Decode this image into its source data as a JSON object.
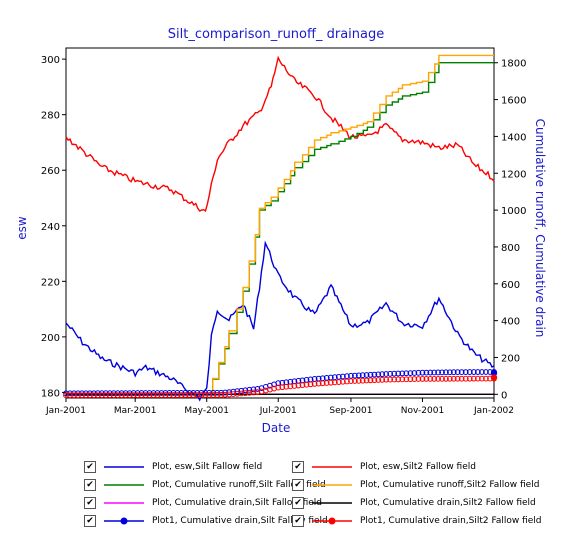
{
  "chart_data": {
    "type": "line",
    "title": "Silt_comparison_runoff_ drainage",
    "xlabel": "Date",
    "ylabel_left": "esw",
    "ylabel_right": "Cumulative runoff, Cumulative drain",
    "x_tick_labels": [
      "Jan-2001",
      "Mar-2001",
      "May-2001",
      "Jul-2001",
      "Sep-2001",
      "Nov-2001",
      "Jan-2002"
    ],
    "x_range": [
      "2001-01-01",
      "2002-01-01"
    ],
    "y_left_ticks": [
      "180",
      "200",
      "220",
      "240",
      "260",
      "280",
      "300"
    ],
    "y_left_range": [
      178,
      304
    ],
    "y_right_ticks": [
      "0",
      "200",
      "400",
      "600",
      "800",
      "1000",
      "1200",
      "1400",
      "1600",
      "1800"
    ],
    "y_right_range": [
      -20,
      1880
    ],
    "grid": false,
    "legend_placement": "bottom",
    "series": [
      {
        "name": "Plot, esw,Silt Fallow field",
        "axis": "left",
        "color": "#0000dd",
        "x": [
          "2001-01-01",
          "2001-01-15",
          "2001-02-01",
          "2001-03-01",
          "2001-03-10",
          "2001-04-01",
          "2001-04-10",
          "2001-04-25",
          "2001-05-01",
          "2001-05-05",
          "2001-05-10",
          "2001-05-20",
          "2001-06-01",
          "2001-06-10",
          "2001-06-15",
          "2001-06-20",
          "2001-07-01",
          "2001-07-15",
          "2001-08-01",
          "2001-08-15",
          "2001-09-01",
          "2001-09-15",
          "2001-10-01",
          "2001-10-15",
          "2001-11-01",
          "2001-11-15",
          "2001-12-01",
          "2001-12-15",
          "2002-01-01"
        ],
        "y": [
          205,
          198,
          192,
          187,
          189,
          185,
          182,
          178,
          181,
          200,
          210,
          206,
          212,
          203,
          218,
          234,
          222,
          214,
          208,
          218,
          204,
          205,
          212,
          205,
          204,
          214,
          201,
          194,
          189
        ]
      },
      {
        "name": "Plot, esw,Silt2 Fallow field",
        "axis": "left",
        "color": "#ff0000",
        "x": [
          "2001-01-01",
          "2001-02-01",
          "2001-03-01",
          "2001-04-01",
          "2001-04-15",
          "2001-04-30",
          "2001-05-10",
          "2001-05-20",
          "2001-06-01",
          "2001-06-15",
          "2001-06-25",
          "2001-07-01",
          "2001-07-15",
          "2001-08-01",
          "2001-08-15",
          "2001-09-01",
          "2001-09-15",
          "2001-10-01",
          "2001-10-15",
          "2001-11-01",
          "2001-11-15",
          "2001-12-01",
          "2001-12-15",
          "2002-01-01"
        ],
        "y": [
          272,
          261,
          256,
          253,
          249,
          245,
          264,
          270,
          276,
          281,
          290,
          300,
          292,
          287,
          279,
          272,
          272,
          276,
          271,
          270,
          268,
          269,
          262,
          257
        ]
      },
      {
        "name": "Plot, Cumulative runoff,Silt Fallow field",
        "axis": "right",
        "color": "#008000",
        "x": [
          "2001-01-01",
          "2001-05-01",
          "2001-05-20",
          "2001-06-01",
          "2001-06-15",
          "2001-06-25",
          "2001-07-01",
          "2001-07-15",
          "2001-08-01",
          "2001-08-15",
          "2001-09-01",
          "2001-09-15",
          "2001-10-01",
          "2001-10-15",
          "2001-11-01",
          "2001-11-15",
          "2002-01-01"
        ],
        "y": [
          0,
          0,
          330,
          560,
          1000,
          1050,
          1100,
          1230,
          1330,
          1360,
          1400,
          1450,
          1570,
          1620,
          1640,
          1800,
          1800
        ]
      },
      {
        "name": "Plot, Cumulative runoff,Silt2 Fallow field",
        "axis": "right",
        "color": "#ffa500",
        "x": [
          "2001-01-01",
          "2001-05-01",
          "2001-05-20",
          "2001-06-01",
          "2001-06-15",
          "2001-06-25",
          "2001-07-01",
          "2001-07-15",
          "2001-08-01",
          "2001-08-15",
          "2001-09-01",
          "2001-09-15",
          "2001-10-01",
          "2001-10-15",
          "2001-11-01",
          "2001-11-15",
          "2002-01-01"
        ],
        "y": [
          0,
          0,
          345,
          580,
          1010,
          1070,
          1120,
          1260,
          1380,
          1420,
          1450,
          1480,
          1620,
          1680,
          1700,
          1840,
          1840
        ]
      },
      {
        "name": "Plot, Cumulative drain,Silt Fallow field",
        "axis": "right",
        "color": "#ff00ff",
        "x": [
          "2001-01-01",
          "2002-01-01"
        ],
        "y": [
          0,
          0
        ]
      },
      {
        "name": "Plot, Cumulative drain,Silt2 Fallow field",
        "axis": "right",
        "color": "#000000",
        "x": [
          "2001-01-01",
          "2002-01-01"
        ],
        "y": [
          0,
          0
        ]
      },
      {
        "name": "Plot1, Cumulative drain,Silt Fallow field",
        "axis": "right",
        "color": "#0000dd",
        "marker": "circle",
        "x": [
          "2001-01-01",
          "2001-05-15",
          "2001-06-15",
          "2001-07-01",
          "2001-08-01",
          "2001-09-01",
          "2001-10-01",
          "2001-11-01",
          "2001-12-01",
          "2002-01-01"
        ],
        "y": [
          0,
          3,
          25,
          55,
          78,
          95,
          105,
          112,
          115,
          116
        ]
      },
      {
        "name": "Plot1, Cumulative drain,Silt2 Fallow field",
        "axis": "right",
        "color": "#ff0000",
        "marker": "circle",
        "x": [
          "2001-01-01",
          "2001-05-15",
          "2001-06-15",
          "2001-07-01",
          "2001-08-01",
          "2001-09-01",
          "2001-10-01",
          "2001-11-01",
          "2001-12-01",
          "2002-01-01"
        ],
        "y": [
          0,
          2,
          18,
          42,
          62,
          77,
          85,
          89,
          90,
          91
        ]
      }
    ]
  },
  "legend": {
    "check_glyph": "✔",
    "items": [
      {
        "label": "Plot, esw,Silt Fallow field",
        "color": "#0000dd",
        "marker": false
      },
      {
        "label": "Plot, esw,Silt2 Fallow field",
        "color": "#ff0000",
        "marker": false
      },
      {
        "label": "Plot, Cumulative runoff,Silt Fallow field",
        "color": "#008000",
        "marker": false
      },
      {
        "label": "Plot, Cumulative runoff,Silt2 Fallow field",
        "color": "#ffa500",
        "marker": false
      },
      {
        "label": "Plot, Cumulative drain,Silt Fallow field",
        "color": "#ff00ff",
        "marker": false
      },
      {
        "label": "Plot, Cumulative drain,Silt2 Fallow field",
        "color": "#000000",
        "marker": false
      },
      {
        "label": "Plot1, Cumulative drain,Silt Fallow field",
        "color": "#0000dd",
        "marker": true
      },
      {
        "label": "Plot1, Cumulative drain,Silt2 Fallow field",
        "color": "#ff0000",
        "marker": true
      }
    ]
  }
}
